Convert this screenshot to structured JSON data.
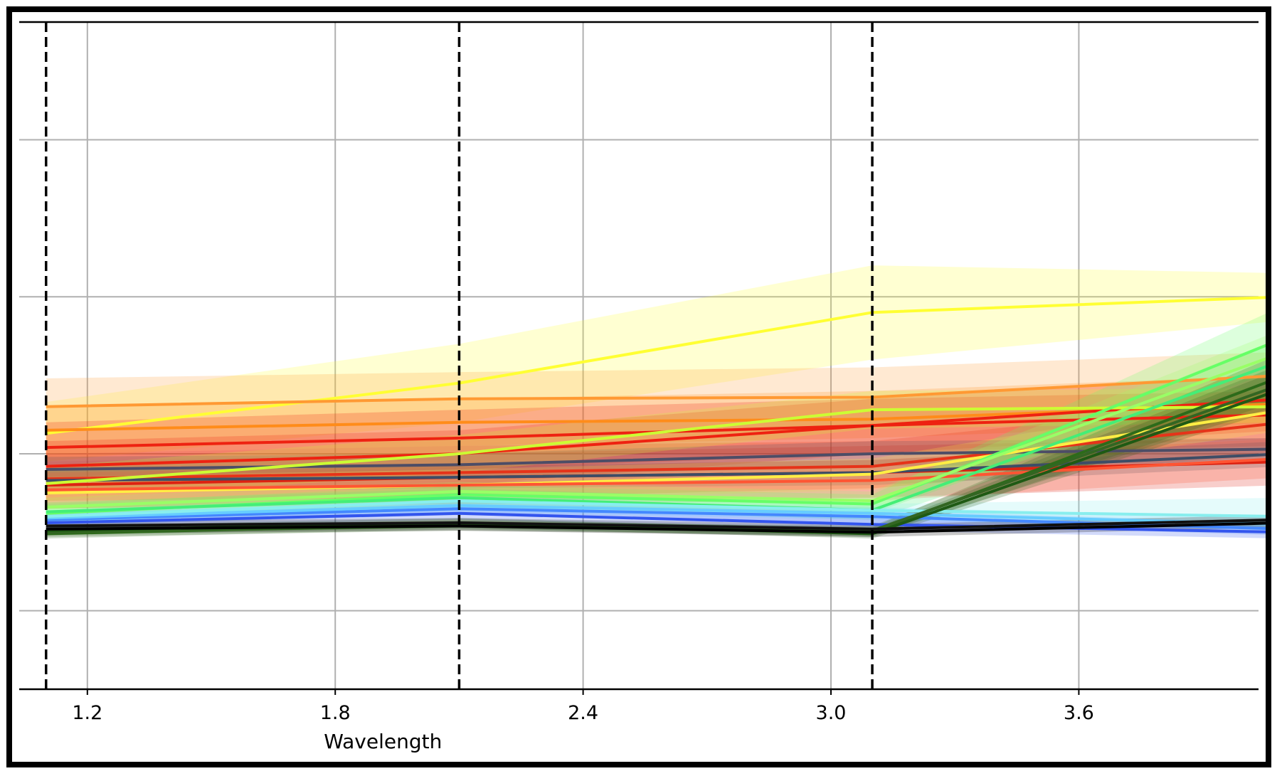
{
  "chart_data": {
    "type": "line",
    "title": "",
    "xlabel": "Wavelength",
    "ylabel": "",
    "xlim": [
      1.035,
      4.035
    ],
    "ylim": [
      0,
      4.25
    ],
    "x_ticks": [
      1.2,
      1.8,
      2.4,
      3.0,
      3.6
    ],
    "x_tick_labels": [
      "1.2",
      "1.8",
      "2.4",
      "3.0",
      "3.6"
    ],
    "y_gridlines": [
      0.5,
      1.5,
      2.5,
      3.5
    ],
    "band_boundaries": [
      1.1,
      2.1,
      3.1,
      4.1
    ],
    "grid": true,
    "legend": "none",
    "x": [
      1.1,
      2.1,
      3.1,
      4.1
    ],
    "series": [
      {
        "color": "#ffff33",
        "values": [
          1.63,
          1.95,
          2.4,
          2.5
        ],
        "band": [
          [
            1.45,
            1.83
          ],
          [
            1.7,
            2.2
          ],
          [
            2.1,
            2.7
          ],
          [
            2.35,
            2.65
          ]
        ]
      },
      {
        "color": "#ff9933",
        "values": [
          1.8,
          1.85,
          1.86,
          2.0
        ],
        "band": [
          [
            1.5,
            1.98
          ],
          [
            1.55,
            2.02
          ],
          [
            1.6,
            2.05
          ],
          [
            1.7,
            2.15
          ]
        ]
      },
      {
        "color": "#ff8c1a",
        "values": [
          1.65,
          1.7,
          1.72,
          1.82
        ],
        "band": [
          [
            1.45,
            1.8
          ],
          [
            1.5,
            1.85
          ],
          [
            1.5,
            1.9
          ],
          [
            1.6,
            2.0
          ]
        ]
      },
      {
        "color": "#ee2211",
        "values": [
          1.54,
          1.6,
          1.68,
          1.85
        ],
        "band": [
          [
            1.35,
            1.7
          ],
          [
            1.4,
            1.78
          ],
          [
            1.5,
            1.85
          ],
          [
            1.65,
            2.0
          ]
        ]
      },
      {
        "color": "#ee2211",
        "values": [
          1.42,
          1.5,
          1.68,
          1.75
        ],
        "band": [
          [
            1.25,
            1.58
          ],
          [
            1.3,
            1.65
          ],
          [
            1.5,
            1.85
          ],
          [
            1.55,
            1.9
          ]
        ]
      },
      {
        "color": "#dd2211",
        "values": [
          1.3,
          1.35,
          1.38,
          1.45
        ],
        "band": [
          [
            1.15,
            1.45
          ],
          [
            1.2,
            1.5
          ],
          [
            1.22,
            1.55
          ],
          [
            1.3,
            1.6
          ]
        ]
      },
      {
        "color": "#e63319",
        "values": [
          1.34,
          1.38,
          1.42,
          1.7
        ],
        "band": [
          [
            1.2,
            1.5
          ],
          [
            1.22,
            1.55
          ],
          [
            1.28,
            1.58
          ],
          [
            1.5,
            1.85
          ]
        ]
      },
      {
        "color": "#4d4d66",
        "values": [
          1.4,
          1.43,
          1.5,
          1.53
        ],
        "band": [
          [
            1.32,
            1.48
          ],
          [
            1.35,
            1.5
          ],
          [
            1.42,
            1.58
          ],
          [
            1.45,
            1.6
          ]
        ]
      },
      {
        "color": "#3d4d66",
        "values": [
          1.33,
          1.35,
          1.38,
          1.5
        ],
        "band": [
          [
            1.26,
            1.4
          ],
          [
            1.28,
            1.42
          ],
          [
            1.3,
            1.46
          ],
          [
            1.42,
            1.58
          ]
        ]
      },
      {
        "color": "#ccff33",
        "values": [
          1.31,
          1.5,
          1.78,
          1.8
        ],
        "band": [
          [
            1.2,
            1.42
          ],
          [
            1.38,
            1.62
          ],
          [
            1.66,
            1.9
          ],
          [
            1.7,
            1.92
          ]
        ]
      },
      {
        "color": "#ffee44",
        "values": [
          1.25,
          1.3,
          1.37,
          1.78
        ],
        "band": [
          [
            1.15,
            1.35
          ],
          [
            1.2,
            1.4
          ],
          [
            1.27,
            1.47
          ],
          [
            1.65,
            1.9
          ]
        ]
      },
      {
        "color": "#ff5533",
        "values": [
          1.27,
          1.3,
          1.33,
          1.47
        ],
        "band": [
          [
            1.15,
            1.38
          ],
          [
            1.18,
            1.42
          ],
          [
            1.2,
            1.46
          ],
          [
            1.35,
            1.6
          ]
        ]
      },
      {
        "color": "#66ff66",
        "values": [
          1.12,
          1.24,
          1.18,
          2.24
        ],
        "band": [
          [
            1.06,
            1.18
          ],
          [
            1.18,
            1.3
          ],
          [
            1.12,
            1.24
          ],
          [
            2.05,
            2.45
          ]
        ]
      },
      {
        "color": "#44ee77",
        "values": [
          1.13,
          1.22,
          1.14,
          2.1
        ],
        "band": [
          [
            1.07,
            1.19
          ],
          [
            1.16,
            1.28
          ],
          [
            1.08,
            1.2
          ],
          [
            1.95,
            2.25
          ]
        ]
      },
      {
        "color": "#99ff66",
        "values": [
          1.16,
          1.26,
          1.2,
          2.15
        ],
        "band": [
          [
            1.1,
            1.22
          ],
          [
            1.2,
            1.32
          ],
          [
            1.14,
            1.26
          ],
          [
            2.0,
            2.3
          ]
        ]
      },
      {
        "color": "#4488ff",
        "values": [
          1.08,
          1.15,
          1.1,
          1.02
        ],
        "band": [
          [
            1.04,
            1.12
          ],
          [
            1.11,
            1.19
          ],
          [
            1.06,
            1.14
          ],
          [
            0.98,
            1.06
          ]
        ]
      },
      {
        "color": "#3355ee",
        "values": [
          1.06,
          1.12,
          1.05,
          1.0
        ],
        "band": [
          [
            1.02,
            1.1
          ],
          [
            1.08,
            1.16
          ],
          [
            1.01,
            1.09
          ],
          [
            0.96,
            1.04
          ]
        ]
      },
      {
        "color": "#66ccff",
        "values": [
          1.09,
          1.17,
          1.12,
          1.05
        ],
        "band": [
          [
            1.05,
            1.13
          ],
          [
            1.13,
            1.21
          ],
          [
            1.08,
            1.16
          ],
          [
            1.01,
            1.09
          ]
        ]
      },
      {
        "color": "#88eeee",
        "values": [
          1.1,
          1.2,
          1.14,
          1.1
        ],
        "band": [
          [
            1.06,
            1.14
          ],
          [
            1.16,
            1.24
          ],
          [
            1.1,
            1.18
          ],
          [
            1.02,
            1.22
          ]
        ]
      },
      {
        "color": "#2d6b1a",
        "values": [
          0.99,
          1.05,
          1.0,
          2.0
        ],
        "band": [
          [
            0.96,
            1.02
          ],
          [
            1.02,
            1.08
          ],
          [
            0.97,
            1.03
          ],
          [
            1.85,
            2.15
          ]
        ]
      },
      {
        "color": "#336622",
        "values": [
          1.0,
          1.04,
          1.01,
          1.95
        ],
        "band": [
          [
            0.97,
            1.03
          ],
          [
            1.01,
            1.07
          ],
          [
            0.98,
            1.04
          ],
          [
            1.82,
            2.08
          ]
        ]
      },
      {
        "color": "#1f5a14",
        "values": [
          1.01,
          1.06,
          0.99,
          1.92
        ],
        "band": [
          [
            0.98,
            1.04
          ],
          [
            1.03,
            1.09
          ],
          [
            0.96,
            1.02
          ],
          [
            1.8,
            2.05
          ]
        ]
      },
      {
        "color": "#000000",
        "values": [
          1.02,
          1.04,
          1.0,
          1.06
        ],
        "band": [
          [
            0.99,
            1.05
          ],
          [
            1.01,
            1.07
          ],
          [
            0.97,
            1.03
          ],
          [
            1.03,
            1.09
          ]
        ]
      },
      {
        "color": "#111111",
        "values": [
          1.04,
          1.06,
          1.02,
          1.08
        ],
        "band": [
          [
            1.01,
            1.07
          ],
          [
            1.03,
            1.09
          ],
          [
            0.99,
            1.05
          ],
          [
            1.05,
            1.11
          ]
        ]
      }
    ]
  }
}
